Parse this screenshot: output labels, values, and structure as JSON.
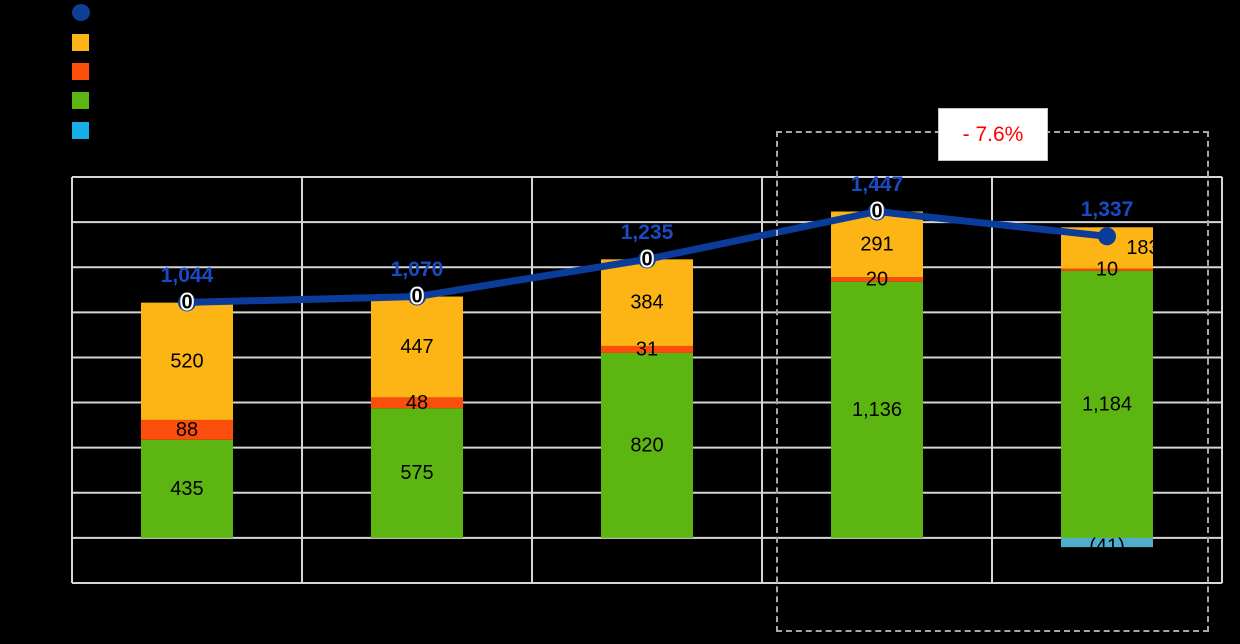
{
  "annotation": {
    "label": "- 7.6%",
    "color": "#FF0000"
  },
  "colors": {
    "background": "#000000",
    "gridline": "#D6D6D6",
    "dashed_box": "#A8A8A8",
    "annotation_red": "#FF0000",
    "annotation_bg": "#FFFFFF",
    "annotation_border": "#C4C4C4",
    "label_black": "#000000",
    "zero_label_halo": "#FFFFFF"
  },
  "legend": {
    "items": [
      {
        "name": "total-line",
        "shape": "circle",
        "color": "#0E3F94"
      },
      {
        "name": "yellow-segment",
        "shape": "square",
        "color": "#FCB514"
      },
      {
        "name": "orange-segment",
        "shape": "square",
        "color": "#FB4E0B"
      },
      {
        "name": "green-segment",
        "shape": "square",
        "color": "#5CB510"
      },
      {
        "name": "cyan-segment",
        "shape": "square",
        "color": "#17ADE9"
      }
    ]
  },
  "chart_data": {
    "type": "bar",
    "subtype": "stacked-bars-with-total-line",
    "categories": [
      "",
      "",
      "",
      "",
      ""
    ],
    "series": [
      {
        "name": "green",
        "color": "#5CB510",
        "values": [
          435,
          575,
          820,
          1136,
          1184
        ],
        "labels": [
          "435",
          "575",
          "820",
          "1,136",
          "1,184"
        ]
      },
      {
        "name": "orange-red",
        "color": "#FB4E0B",
        "values": [
          88,
          48,
          31,
          20,
          10
        ],
        "labels": [
          "88",
          "48",
          "31",
          "20",
          "10"
        ]
      },
      {
        "name": "yellow",
        "color": "#FCB514",
        "values": [
          520,
          447,
          384,
          291,
          183
        ],
        "labels": [
          "520",
          "447",
          "384",
          "291",
          "183"
        ],
        "label_dx": [
          0,
          0,
          0,
          0,
          36
        ]
      },
      {
        "name": "cyan",
        "color": "#4FAECB",
        "values": [
          0,
          0,
          0,
          0,
          -41
        ],
        "labels": [
          "0",
          "0",
          "0",
          "0",
          "(41)"
        ],
        "label_dy": [
          0,
          0,
          0,
          0,
          4
        ]
      }
    ],
    "line": {
      "name": "total",
      "color": "#0B3C9C",
      "label_color": "#1B4BC4",
      "values": [
        1044,
        1070,
        1235,
        1447,
        1337
      ],
      "labels": [
        "1,044",
        "1,070",
        "1,235",
        "1,447",
        "1,337"
      ]
    },
    "ylim": [
      -200,
      1600
    ],
    "ytick_step": 200,
    "grid": true,
    "legend_position": "top-left",
    "highlight": {
      "category_indexes": [
        3,
        4
      ],
      "label": "- 7.6%"
    }
  }
}
